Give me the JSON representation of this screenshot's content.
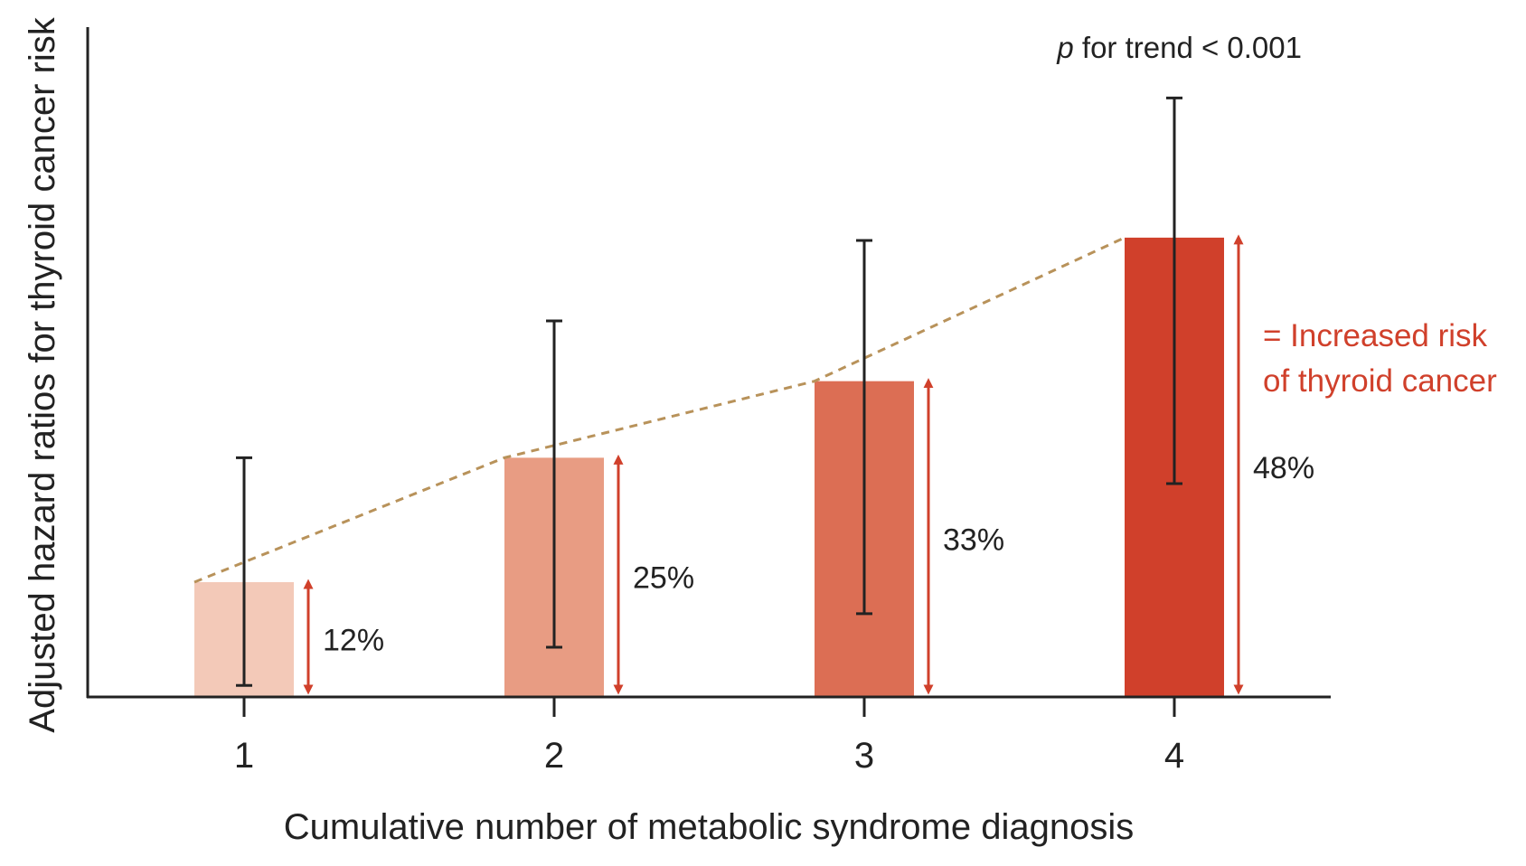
{
  "chart_data": {
    "type": "bar",
    "title": "",
    "xlabel": "Cumulative number of metabolic syndrome diagnosis",
    "ylabel": "Adjusted hazard ratios for thyroid cancer risk",
    "categories": [
      "1",
      "2",
      "3",
      "4"
    ],
    "values": [
      1.12,
      1.25,
      1.33,
      1.48
    ],
    "error_low": [
      1.012,
      1.052,
      1.087,
      1.223
    ],
    "error_high": [
      1.25,
      1.393,
      1.477,
      1.626
    ],
    "labels": [
      "12%",
      "25%",
      "33%",
      "48%"
    ],
    "bar_colors": [
      "#f3c9b8",
      "#e89c83",
      "#dc6e54",
      "#d0402b"
    ],
    "ylim": [
      1.0,
      1.7
    ],
    "grid": false,
    "trend_line": {
      "style": "dashed",
      "color": "#b8925a"
    },
    "arrow_color": "#d0402b",
    "annotation": {
      "italic": "p",
      "text": " for trend < 0.001"
    },
    "legend": {
      "lines": [
        "= Increased risk",
        "of thyroid cancer"
      ],
      "position": "right"
    }
  }
}
